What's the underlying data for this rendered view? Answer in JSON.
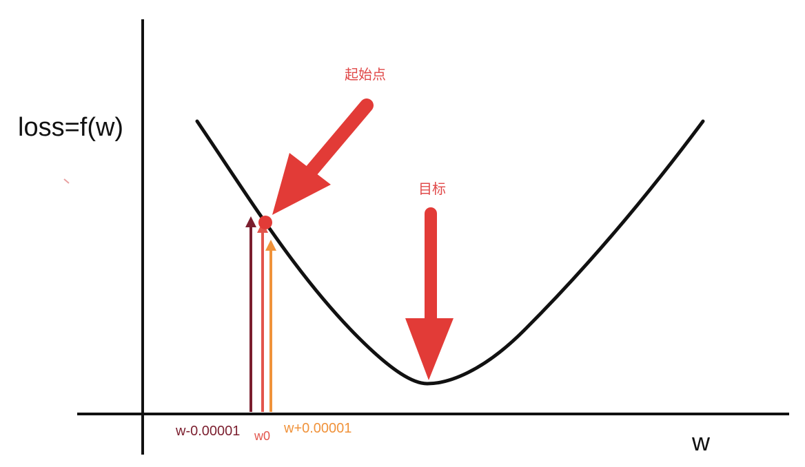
{
  "labels": {
    "y_axis": "loss=f(w)",
    "x_axis": "w",
    "start_point": "起始点",
    "target": "目标",
    "w_minus": "w-0.00001",
    "w0": "w0",
    "w_plus": "w+0.00001"
  },
  "colors": {
    "curve": "#111111",
    "axis": "#111111",
    "red_arrow": "#e23b37",
    "w_minus_arrow": "#7b1e2e",
    "w0_arrow": "#e2554c",
    "w_plus_arrow": "#f0923a",
    "label_red": "#e04848"
  }
}
